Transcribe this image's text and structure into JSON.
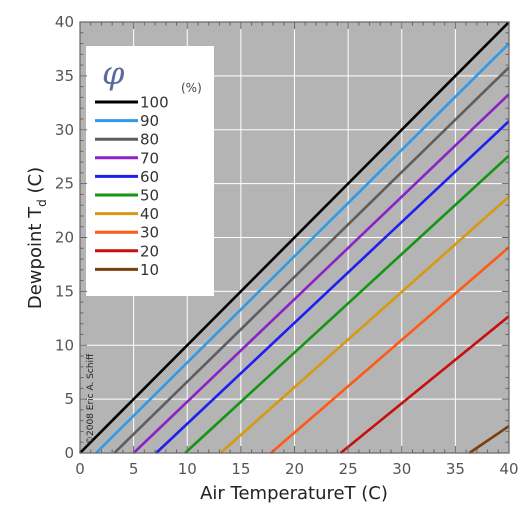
{
  "chart_data": {
    "type": "line",
    "title": "",
    "xlabel": "Air TemperatureT (C)",
    "ylabel_main": "Dewpoint T",
    "ylabel_sub": "d",
    "ylabel_unit": " (C)",
    "xlim": [
      0,
      40
    ],
    "ylim": [
      0,
      40
    ],
    "x_ticks": [
      0,
      5,
      10,
      15,
      20,
      25,
      30,
      35,
      40
    ],
    "y_ticks": [
      0,
      5,
      10,
      15,
      20,
      25,
      30,
      35,
      40
    ],
    "grid": true,
    "background": "#b4b4b4",
    "legend": {
      "placement": "top-left",
      "symbol": "φ",
      "unit": "(%)",
      "entries": [
        {
          "label": "100",
          "color": "#000000"
        },
        {
          "label": "90",
          "color": "#2f9be8"
        },
        {
          "label": "80",
          "color": "#5e5e5e"
        },
        {
          "label": "70",
          "color": "#8a22c8"
        },
        {
          "label": "60",
          "color": "#1f1ff0"
        },
        {
          "label": "50",
          "color": "#139613"
        },
        {
          "label": "40",
          "color": "#d69a10"
        },
        {
          "label": "30",
          "color": "#ff5a14"
        },
        {
          "label": "20",
          "color": "#c80f0f"
        },
        {
          "label": "10",
          "color": "#7b3f0c"
        }
      ]
    },
    "series": [
      {
        "name": "100",
        "x": [
          0,
          40
        ],
        "y": [
          0,
          40
        ]
      },
      {
        "name": "90",
        "x": [
          1.5,
          40
        ],
        "y": [
          0,
          38
        ]
      },
      {
        "name": "80",
        "x": [
          3.2,
          40
        ],
        "y": [
          0,
          35.8
        ]
      },
      {
        "name": "70",
        "x": [
          5.0,
          40
        ],
        "y": [
          0,
          33.3
        ]
      },
      {
        "name": "60",
        "x": [
          7.1,
          40
        ],
        "y": [
          0,
          30.8
        ]
      },
      {
        "name": "50",
        "x": [
          9.8,
          40
        ],
        "y": [
          0,
          27.6
        ]
      },
      {
        "name": "40",
        "x": [
          13.1,
          40
        ],
        "y": [
          0,
          23.8
        ]
      },
      {
        "name": "30",
        "x": [
          17.8,
          40
        ],
        "y": [
          0,
          19.1
        ]
      },
      {
        "name": "20",
        "x": [
          24.3,
          40
        ],
        "y": [
          0,
          12.7
        ]
      },
      {
        "name": "10",
        "x": [
          36.3,
          40
        ],
        "y": [
          0,
          2.5
        ]
      }
    ],
    "credit": "©2008 Eric A. Schiff"
  }
}
